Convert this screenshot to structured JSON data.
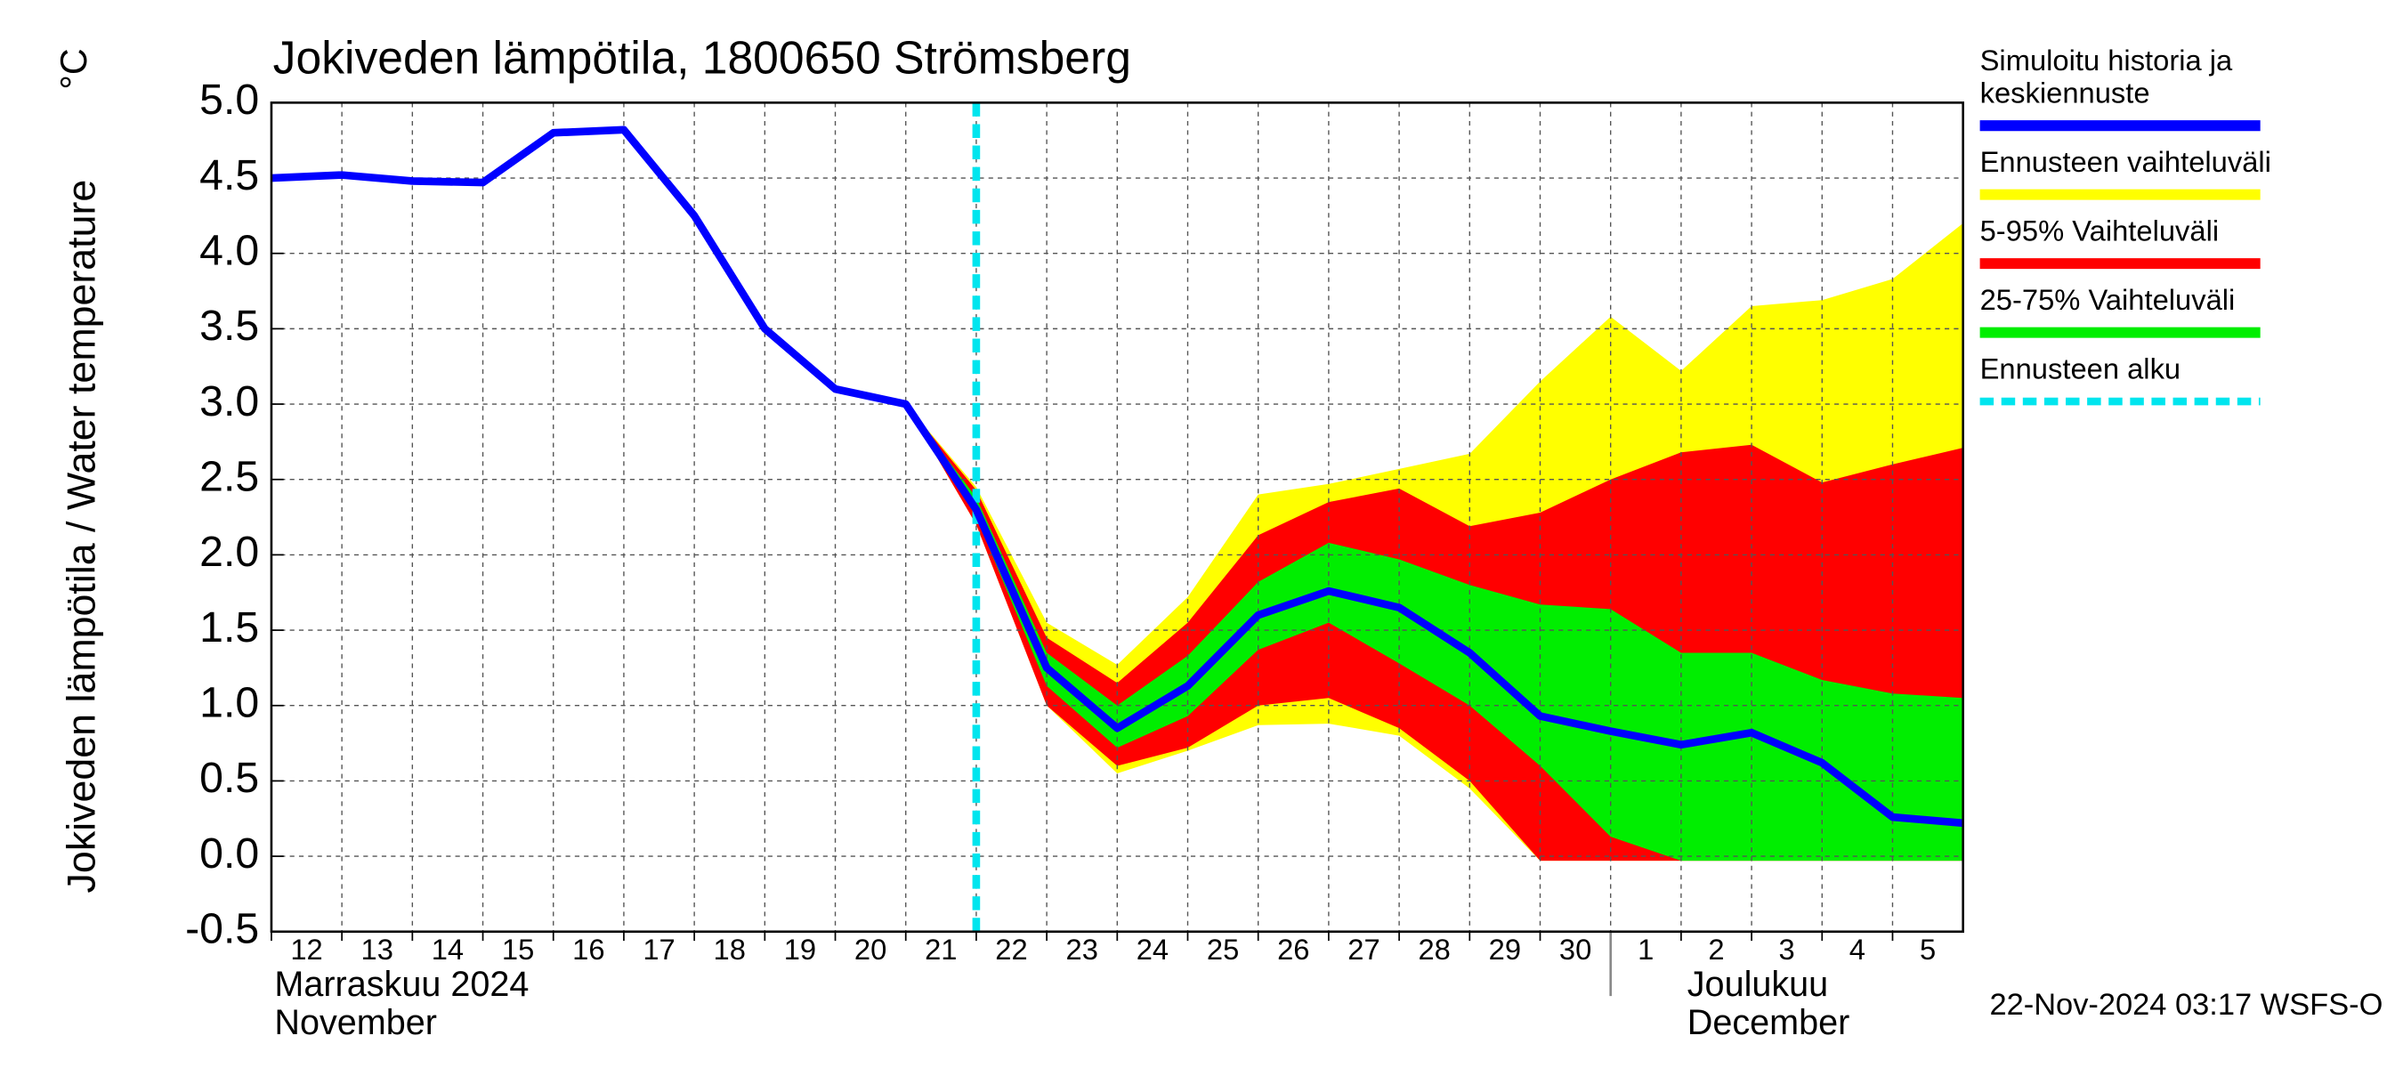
{
  "chart_data": {
    "type": "line",
    "title": "Jokiveden lämpötila, 1800650 Strömsberg",
    "y_label": "Jokiveden lämpötila / Water temperature",
    "y_unit": "°C",
    "categories": [
      "12",
      "13",
      "14",
      "15",
      "16",
      "17",
      "18",
      "19",
      "20",
      "21",
      "22",
      "23",
      "24",
      "25",
      "26",
      "27",
      "28",
      "29",
      "30",
      "1",
      "2",
      "3",
      "4",
      "5",
      null
    ],
    "months": [
      {
        "fi": "Marraskuu 2024",
        "en": "November",
        "start": "12"
      },
      {
        "fi": "Joulukuu",
        "en": "December",
        "start": "1"
      }
    ],
    "forecast_start": "22",
    "forecast_label": "Ennusteen alku",
    "forecast_color": "#00e5ee",
    "ylim": [
      -0.5,
      5.0
    ],
    "yticks": [
      -0.5,
      {
        "value": 0,
        "label": "0.0"
      },
      0.5,
      {
        "value": 1,
        "label": "1.0"
      },
      1.5,
      {
        "value": 2,
        "label": "2.0"
      },
      2.5,
      {
        "value": 3,
        "label": "3.0"
      },
      3.5,
      {
        "value": 4,
        "label": "4.0"
      },
      4.5,
      {
        "value": 5,
        "label": "5.0"
      }
    ],
    "grid": true,
    "series": [
      {
        "name": "Simuloitu historia ja keskiennuste",
        "type": "line",
        "color": "#0000ff",
        "values": [
          4.5,
          4.52,
          4.48,
          4.47,
          4.8,
          4.82,
          4.25,
          3.5,
          3.1,
          3.0,
          2.3,
          1.25,
          0.85,
          1.13,
          1.6,
          1.76,
          1.65,
          1.35,
          0.93,
          0.83,
          0.74,
          0.82,
          0.62,
          0.26,
          0.22
        ]
      },
      {
        "name": "Ennusteen vaihteluväli",
        "type": "band",
        "color": "#ffff00",
        "high": [
          null,
          null,
          null,
          null,
          null,
          null,
          null,
          null,
          null,
          3.0,
          2.45,
          1.55,
          1.27,
          1.72,
          2.4,
          2.47,
          2.57,
          2.67,
          3.15,
          3.58,
          3.22,
          3.65,
          3.69,
          3.83,
          4.2
        ],
        "low": [
          null,
          null,
          null,
          null,
          null,
          null,
          null,
          null,
          null,
          3.0,
          2.2,
          1.0,
          0.55,
          0.7,
          0.87,
          0.88,
          0.8,
          0.45,
          -0.03,
          -0.03,
          -0.03,
          -0.03,
          -0.03,
          -0.03,
          -0.03
        ]
      },
      {
        "name": "5-95% Vaihteluväli",
        "type": "band",
        "color": "#ff0000",
        "high": [
          null,
          null,
          null,
          null,
          null,
          null,
          null,
          null,
          null,
          3.0,
          2.43,
          1.45,
          1.15,
          1.55,
          2.13,
          2.35,
          2.44,
          2.19,
          2.28,
          2.5,
          2.68,
          2.73,
          2.48,
          2.6,
          2.71
        ],
        "low": [
          null,
          null,
          null,
          null,
          null,
          null,
          null,
          null,
          null,
          3.0,
          2.2,
          1.0,
          0.6,
          0.72,
          1.0,
          1.05,
          0.85,
          0.5,
          -0.03,
          -0.03,
          -0.03,
          -0.03,
          -0.03,
          -0.03,
          -0.03
        ]
      },
      {
        "name": "25-75% Vaihteluväli",
        "type": "band",
        "color": "#00ee00",
        "high": [
          null,
          null,
          null,
          null,
          null,
          null,
          null,
          null,
          null,
          3.0,
          2.38,
          1.35,
          1.0,
          1.33,
          1.82,
          2.08,
          1.97,
          1.8,
          1.67,
          1.64,
          1.35,
          1.35,
          1.17,
          1.08,
          1.05
        ],
        "low": [
          null,
          null,
          null,
          null,
          null,
          null,
          null,
          null,
          null,
          3.0,
          2.25,
          1.13,
          0.72,
          0.93,
          1.37,
          1.55,
          1.28,
          1.0,
          0.6,
          0.13,
          -0.03,
          -0.03,
          -0.03,
          -0.03,
          -0.03
        ]
      }
    ],
    "footer": "22-Nov-2024 03:17 WSFS-O"
  }
}
